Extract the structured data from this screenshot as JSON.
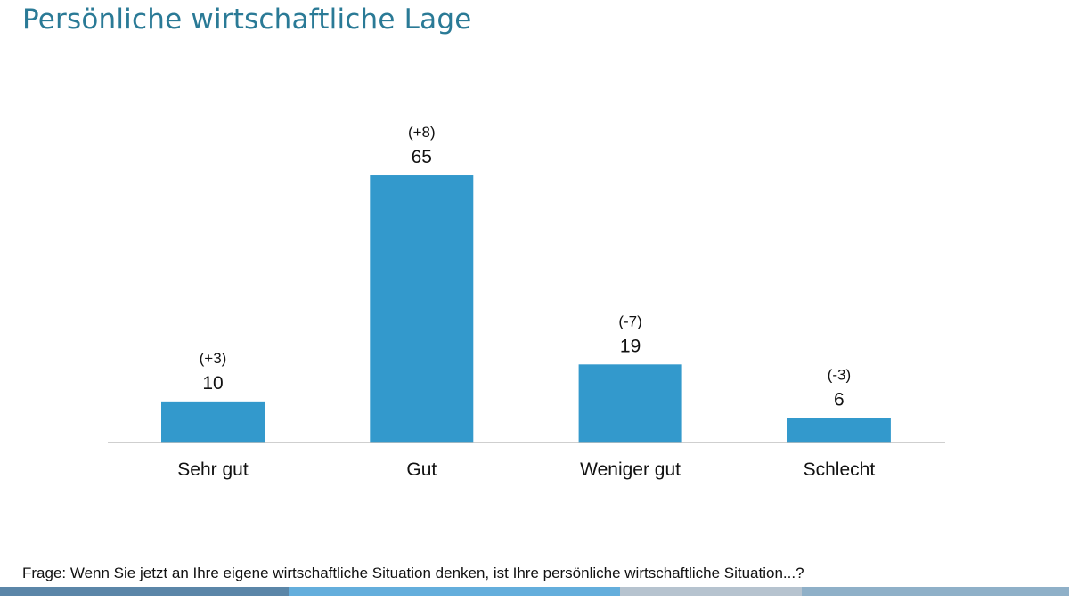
{
  "title": "Persönliche wirtschaftliche Lage",
  "footnote": "Frage: Wenn Sie jetzt an Ihre eigene wirtschaftliche Situation denken, ist Ihre persönliche wirtschaftliche Situation...?",
  "colors": {
    "bar": "#3399cc",
    "title": "#2a7a96",
    "axis": "#bfbfbf",
    "bottom_bar": [
      "#5b86a8",
      "#64aedc",
      "#b6c3cf",
      "#8fb0c8"
    ]
  },
  "chart_data": {
    "type": "bar",
    "title": "Persönliche wirtschaftliche Lage",
    "categories": [
      "Sehr gut",
      "Gut",
      "Weniger gut",
      "Schlecht"
    ],
    "values": [
      10,
      65,
      19,
      6
    ],
    "changes": [
      "(+3)",
      "(+8)",
      "(-7)",
      "(-3)"
    ],
    "xlabel": "",
    "ylabel": "",
    "ylim": [
      0,
      70
    ],
    "grid": false,
    "legend": "none"
  }
}
